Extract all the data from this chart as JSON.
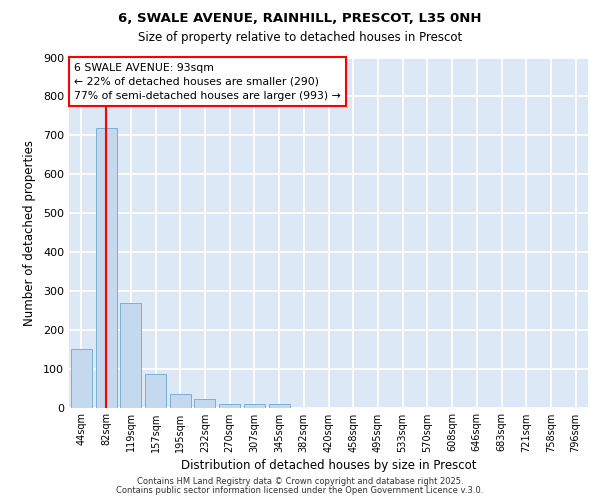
{
  "title1": "6, SWALE AVENUE, RAINHILL, PRESCOT, L35 0NH",
  "title2": "Size of property relative to detached houses in Prescot",
  "xlabel": "Distribution of detached houses by size in Prescot",
  "ylabel": "Number of detached properties",
  "categories": [
    "44sqm",
    "82sqm",
    "119sqm",
    "157sqm",
    "195sqm",
    "232sqm",
    "270sqm",
    "307sqm",
    "345sqm",
    "382sqm",
    "420sqm",
    "458sqm",
    "495sqm",
    "533sqm",
    "570sqm",
    "608sqm",
    "646sqm",
    "683sqm",
    "721sqm",
    "758sqm",
    "796sqm"
  ],
  "values": [
    150,
    720,
    270,
    85,
    35,
    22,
    10,
    10,
    8,
    0,
    0,
    0,
    0,
    0,
    0,
    0,
    0,
    0,
    0,
    0,
    0
  ],
  "bar_color": "#c5d9ee",
  "bar_edge_color": "#7aafd4",
  "red_line_x": 1.0,
  "annotation_title": "6 SWALE AVENUE: 93sqm",
  "annotation_line1": "← 22% of detached houses are smaller (290)",
  "annotation_line2": "77% of semi-detached houses are larger (993) →",
  "ylim": [
    0,
    900
  ],
  "yticks": [
    0,
    100,
    200,
    300,
    400,
    500,
    600,
    700,
    800,
    900
  ],
  "bg_color": "#dce8f5",
  "grid_color": "#ffffff",
  "footer1": "Contains HM Land Registry data © Crown copyright and database right 2025.",
  "footer2": "Contains public sector information licensed under the Open Government Licence v.3.0."
}
